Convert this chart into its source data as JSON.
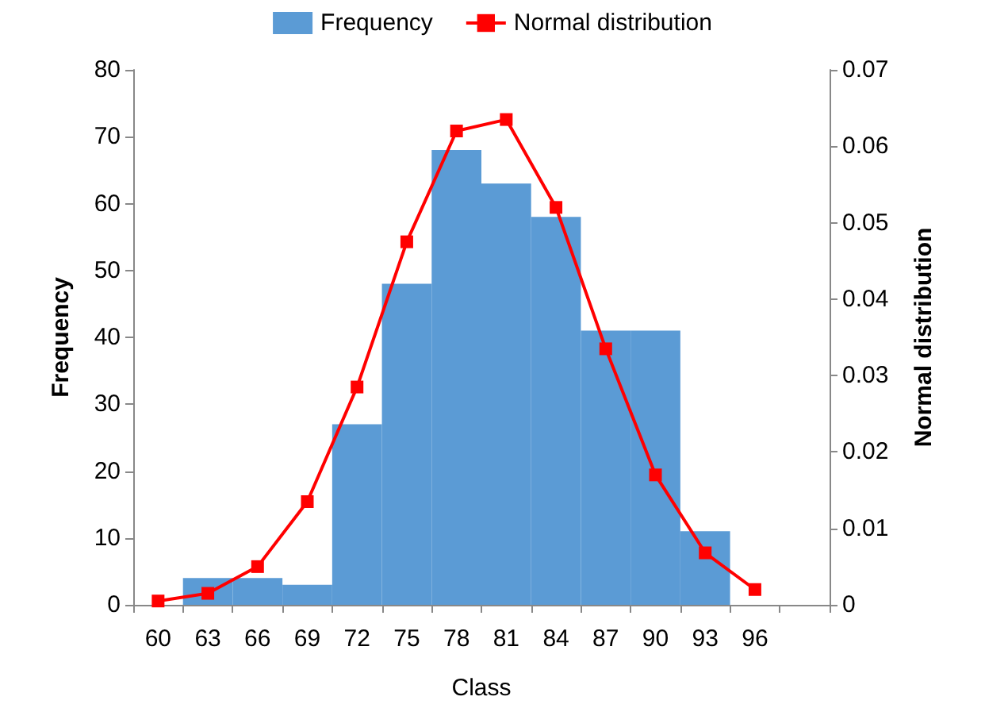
{
  "chart_data": {
    "type": "bar",
    "xlabel": "Class",
    "ylabel": "Frequency",
    "y2label": "Normal distribution",
    "categories": [
      "60",
      "63",
      "66",
      "69",
      "72",
      "75",
      "78",
      "81",
      "84",
      "87",
      "90",
      "93",
      "96",
      null
    ],
    "series": [
      {
        "name": "Frequency",
        "color": "#5b9bd5",
        "values": [
          0,
          4,
          4,
          3,
          27,
          48,
          68,
          63,
          58,
          41,
          41,
          11,
          0,
          null
        ]
      },
      {
        "name": "Normal distribution",
        "type": "line",
        "axis": "y2",
        "color": "#ff0000",
        "marker": "square",
        "values": [
          0.0005,
          0.0015,
          0.005,
          0.0135,
          0.0285,
          0.0475,
          0.062,
          0.0635,
          0.052,
          0.0335,
          0.017,
          0.0068,
          0.002,
          null
        ]
      }
    ],
    "ylim": [
      0,
      80
    ],
    "yticks": [
      0,
      10,
      20,
      30,
      40,
      50,
      60,
      70,
      80
    ],
    "y2lim": [
      0,
      0.07
    ],
    "y2ticks": [
      0,
      0.01,
      0.02,
      0.03,
      0.04,
      0.05,
      0.06,
      0.07
    ],
    "legend": "top",
    "grid": false
  }
}
